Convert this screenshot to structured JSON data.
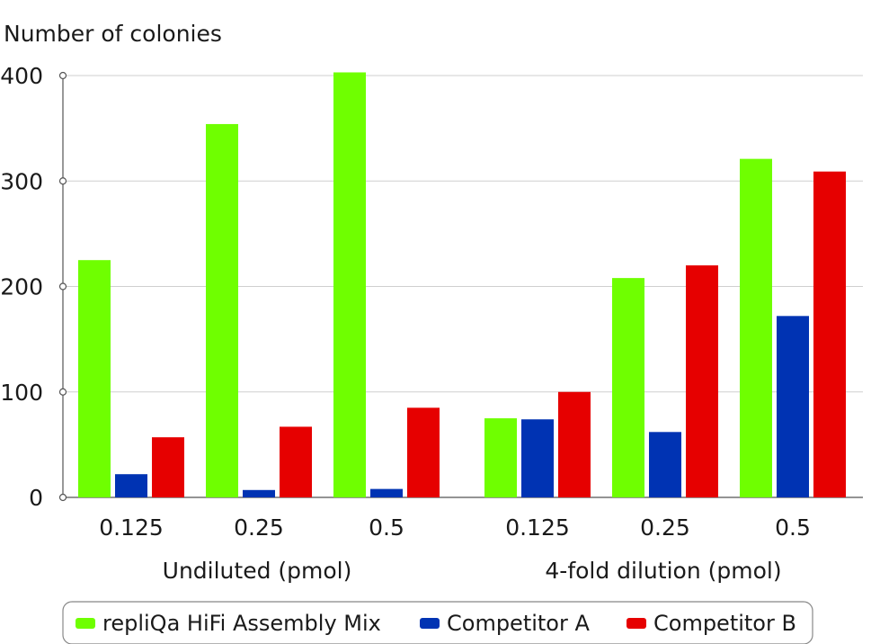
{
  "chart_data": {
    "type": "bar",
    "ylabel": "Number of colonies",
    "ylim": [
      0,
      400
    ],
    "yticks": [
      0,
      100,
      200,
      300,
      400
    ],
    "grid": true,
    "legend_position": "bottom",
    "groups": [
      {
        "label": "Undiluted (pmol)",
        "categories": [
          "0.125",
          "0.25",
          "0.5"
        ]
      },
      {
        "label": "4-fold dilution (pmol)",
        "categories": [
          "0.125",
          "0.25",
          "0.5"
        ]
      }
    ],
    "series": [
      {
        "name": "repliQa HiFi Assembly Mix",
        "color": "#6fff00",
        "values": [
          225,
          354,
          403,
          75,
          208,
          321
        ]
      },
      {
        "name": "Competitor A",
        "color": "#0033b3",
        "values": [
          22,
          7,
          8,
          74,
          62,
          172
        ]
      },
      {
        "name": "Competitor B",
        "color": "#e60000",
        "values": [
          57,
          67,
          85,
          100,
          220,
          309
        ]
      }
    ]
  }
}
